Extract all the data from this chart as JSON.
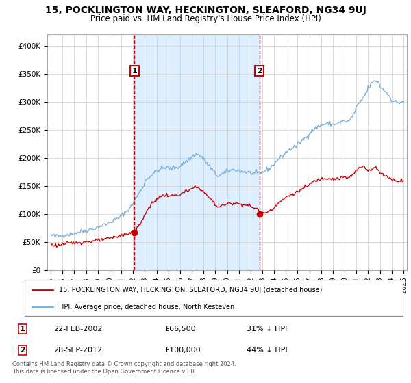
{
  "title": "15, POCKLINGTON WAY, HECKINGTON, SLEAFORD, NG34 9UJ",
  "subtitle": "Price paid vs. HM Land Registry's House Price Index (HPI)",
  "legend_line1": "15, POCKLINGTON WAY, HECKINGTON, SLEAFORD, NG34 9UJ (detached house)",
  "legend_line2": "HPI: Average price, detached house, North Kesteven",
  "footer": "Contains HM Land Registry data © Crown copyright and database right 2024.\nThis data is licensed under the Open Government Licence v3.0.",
  "annotation1_label": "1",
  "annotation1_date": "22-FEB-2002",
  "annotation1_price": "£66,500",
  "annotation1_hpi": "31% ↓ HPI",
  "annotation2_label": "2",
  "annotation2_date": "28-SEP-2012",
  "annotation2_price": "£100,000",
  "annotation2_hpi": "44% ↓ HPI",
  "red_color": "#cc0000",
  "blue_color": "#7aaed6",
  "shade_color": "#ddeeff",
  "background_color": "#ffffff",
  "grid_color": "#cccccc",
  "title_fontsize": 10,
  "subtitle_fontsize": 8.5,
  "ylim": [
    0,
    420000
  ],
  "yticks": [
    0,
    50000,
    100000,
    150000,
    200000,
    250000,
    300000,
    350000,
    400000
  ],
  "ytick_labels": [
    "£0",
    "£50K",
    "£100K",
    "£150K",
    "£200K",
    "£250K",
    "£300K",
    "£350K",
    "£400K"
  ],
  "sale1_year": 2002.12,
  "sale1_price": 66500,
  "sale2_year": 2012.75,
  "sale2_price": 100000,
  "xlim_start": 1994.7,
  "xlim_end": 2025.3
}
